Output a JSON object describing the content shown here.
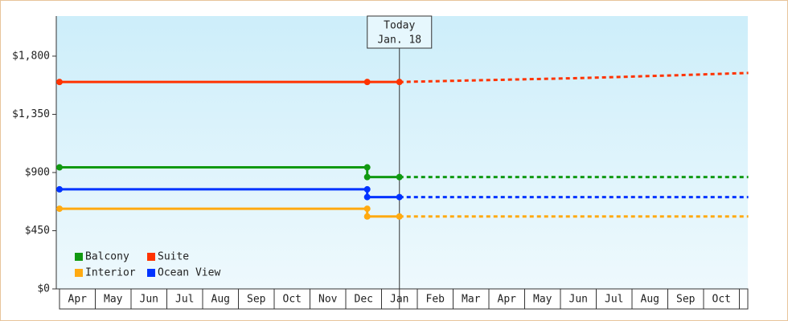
{
  "chart_data": {
    "type": "line",
    "categories": [
      "Apr",
      "May",
      "Jun",
      "Jul",
      "Aug",
      "Sep",
      "Oct",
      "Nov",
      "Dec",
      "Jan",
      "Feb",
      "Mar",
      "Apr",
      "May",
      "Jun",
      "Jul",
      "Aug",
      "Sep",
      "Oct"
    ],
    "xlim": [
      0,
      19.25
    ],
    "ylim": [
      0,
      2110
    ],
    "yticks": [
      {
        "value": 0,
        "label": "$0"
      },
      {
        "value": 450,
        "label": "$450"
      },
      {
        "value": 900,
        "label": "$900"
      },
      {
        "value": 1350,
        "label": "$1,350"
      },
      {
        "value": 1800,
        "label": "$1,800"
      }
    ],
    "today": {
      "x": 9.5,
      "label": "Today",
      "date": "Jan. 18"
    },
    "series": [
      {
        "name": "Balcony",
        "color": "#119911",
        "history": {
          "x": [
            0,
            8.6,
            8.6,
            9.5
          ],
          "values": [
            940,
            940,
            865,
            865
          ]
        },
        "projection": {
          "x": [
            9.5,
            19.25
          ],
          "values": [
            865,
            865
          ]
        }
      },
      {
        "name": "Suite",
        "color": "#ff3300",
        "history": {
          "x": [
            0,
            8.6,
            9.5
          ],
          "values": [
            1600,
            1600,
            1600
          ]
        },
        "projection": {
          "x": [
            9.5,
            12,
            14.5,
            17,
            19.25
          ],
          "values": [
            1600,
            1615,
            1630,
            1650,
            1670
          ]
        }
      },
      {
        "name": "Interior",
        "color": "#ffaa11",
        "history": {
          "x": [
            0,
            8.6,
            8.6,
            9.5
          ],
          "values": [
            620,
            620,
            560,
            560
          ]
        },
        "projection": {
          "x": [
            9.5,
            19.25
          ],
          "values": [
            560,
            560
          ]
        }
      },
      {
        "name": "Ocean View",
        "color": "#0033ff",
        "history": {
          "x": [
            0,
            8.6,
            8.6,
            9.5
          ],
          "values": [
            770,
            770,
            710,
            710
          ]
        },
        "projection": {
          "x": [
            9.5,
            19.25
          ],
          "values": [
            710,
            710
          ]
        }
      }
    ]
  }
}
